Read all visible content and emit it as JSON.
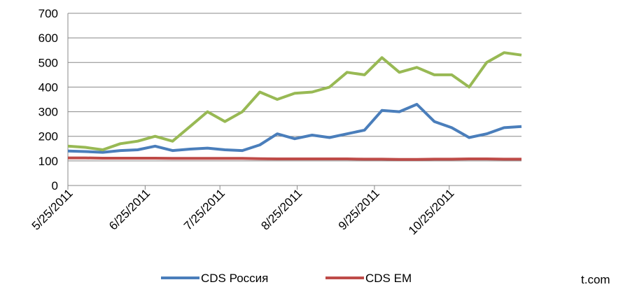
{
  "chart_data": {
    "type": "line",
    "x": [
      "5/25/2011",
      "6/1/2011",
      "6/8/2011",
      "6/15/2011",
      "6/22/2011",
      "6/29/2011",
      "7/6/2011",
      "7/13/2011",
      "7/20/2011",
      "7/27/2011",
      "8/3/2011",
      "8/10/2011",
      "8/17/2011",
      "8/24/2011",
      "8/31/2011",
      "9/7/2011",
      "9/14/2011",
      "9/21/2011",
      "9/28/2011",
      "10/5/2011",
      "10/12/2011",
      "10/19/2011",
      "10/26/2011",
      "11/2/2011",
      "11/9/2011",
      "11/16/2011",
      "11/23/2011"
    ],
    "series": [
      {
        "name": "CDS Россия",
        "color": "#4a7ebb",
        "values": [
          140,
          138,
          135,
          142,
          145,
          160,
          142,
          148,
          152,
          145,
          142,
          165,
          210,
          190,
          205,
          195,
          210,
          225,
          305,
          300,
          330,
          260,
          235,
          195,
          210,
          235,
          240
        ]
      },
      {
        "name": "CDS EM",
        "color": "#be4b48",
        "values": [
          112,
          112,
          111,
          111,
          111,
          111,
          110,
          110,
          110,
          110,
          110,
          109,
          108,
          108,
          108,
          108,
          108,
          107,
          107,
          106,
          106,
          107,
          107,
          108,
          108,
          107,
          107
        ]
      },
      {
        "color": "#98b954",
        "values": [
          160,
          155,
          145,
          170,
          180,
          200,
          180,
          240,
          300,
          260,
          300,
          380,
          350,
          375,
          380,
          400,
          460,
          450,
          520,
          460,
          480,
          450,
          450,
          400,
          500,
          540,
          530
        ]
      }
    ],
    "xlim": [
      "5/25/2011",
      "11/23/2011"
    ],
    "xticks": [
      "5/25/2011",
      "6/25/2011",
      "7/25/2011",
      "8/25/2011",
      "9/25/2011",
      "10/25/2011"
    ],
    "ylim": [
      0,
      700
    ],
    "yticks": [
      0,
      100,
      200,
      300,
      400,
      500,
      600,
      700
    ],
    "grid": true,
    "legend": "bottom",
    "annotation": "t.com"
  }
}
